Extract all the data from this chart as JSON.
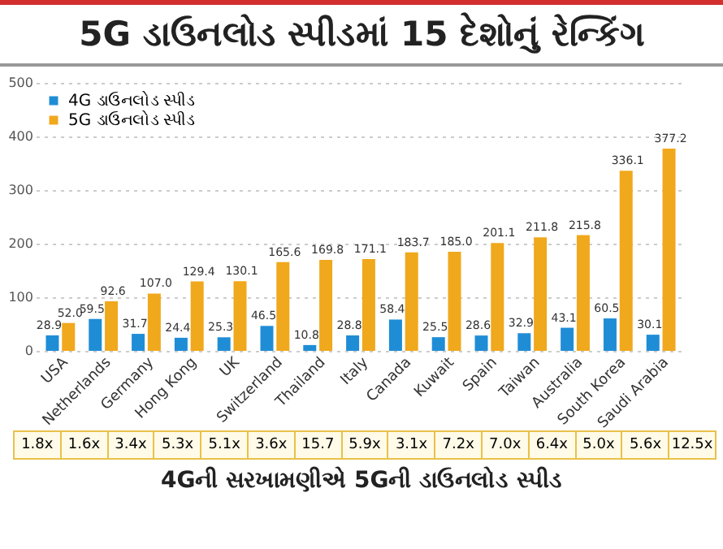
{
  "chart_data": {
    "type": "bar",
    "title": "5G ડાઉનલોડ સ્પીડમાં 15 દેશોનું રેન્કિંગ",
    "categories": [
      "USA",
      "Netherlands",
      "Germany",
      "Hong Kong",
      "UK",
      "Switzerland",
      "Thailand",
      "Italy",
      "Canada",
      "Kuwait",
      "Spain",
      "Taiwan",
      "Australia",
      "South Korea",
      "Saudi Arabia"
    ],
    "series": [
      {
        "name": "4G ડાઉનલોડ સ્પીડ",
        "color": "#1f8dd6",
        "values": [
          28.9,
          59.5,
          31.7,
          24.4,
          25.3,
          46.5,
          10.8,
          28.8,
          58.4,
          25.5,
          28.6,
          32.9,
          43.1,
          60.5,
          30.1
        ],
        "value_labels": [
          "28.9",
          "59.5",
          "31.7",
          "24.4",
          "25.3",
          "46.5",
          "10.8",
          "28.8",
          "58.4",
          "25.5",
          "28.6",
          "32.9",
          "43.1",
          "60.5",
          "30.1"
        ]
      },
      {
        "name": "5G ડાઉનલોડ સ્પીડ",
        "color": "#f0a81c",
        "values": [
          52.0,
          92.6,
          107.0,
          129.4,
          130.1,
          165.6,
          169.8,
          171.1,
          183.7,
          185.0,
          201.1,
          211.8,
          215.8,
          336.1,
          377.2
        ],
        "value_labels": [
          "52.0",
          "92.6",
          "107.0",
          "129.4",
          "130.1",
          "165.6",
          "169.8",
          "171.1",
          "183.7",
          "185.0",
          "201.1",
          "211.8",
          "215.8",
          "336.1",
          "377.2"
        ]
      }
    ],
    "ylim": [
      0,
      500
    ],
    "yticks": [
      0,
      100,
      200,
      300,
      400,
      500
    ],
    "grid": "y",
    "legend": "top left",
    "annotations": [
      "1.8x",
      "1.6x",
      "3.4x",
      "5.3x",
      "5.1x",
      "3.6x",
      "15.7",
      "5.9x",
      "3.1x",
      "7.2x",
      "7.0x",
      "6.4x",
      "5.0x",
      "5.6x",
      "12.5x",
      "4Gની સરખામણીએ 5Gની ડાઉનલોડ સ્પીડ"
    ]
  }
}
